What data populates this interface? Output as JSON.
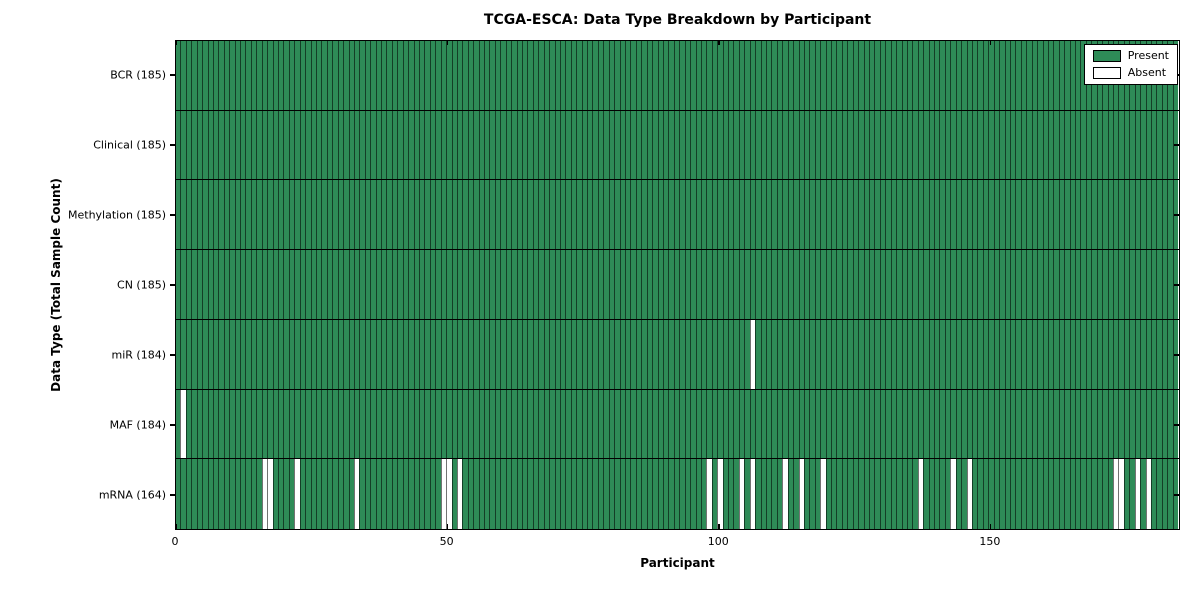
{
  "chart_data": {
    "type": "heatmap",
    "title": "TCGA-ESCA: Data Type Breakdown by Participant",
    "xlabel": "Participant",
    "ylabel": "Data Type (Total Sample Count)",
    "xlim": [
      0,
      185
    ],
    "x_ticks": [
      0,
      50,
      100,
      150
    ],
    "n_participants": 185,
    "grid": false,
    "legend": {
      "position": "upper-right",
      "items": [
        {
          "label": "Present",
          "color": "#2e8b57"
        },
        {
          "label": "Absent",
          "color": "#ffffff"
        }
      ]
    },
    "colors": {
      "present": "#2e8b57",
      "absent": "#ffffff",
      "edge": "#000000"
    },
    "rows": [
      {
        "label": "BCR (185)",
        "data_type": "BCR",
        "total_samples": 185,
        "absent_participants": []
      },
      {
        "label": "Clinical (185)",
        "data_type": "Clinical",
        "total_samples": 185,
        "absent_participants": []
      },
      {
        "label": "Methylation (185)",
        "data_type": "Methylation",
        "total_samples": 185,
        "absent_participants": []
      },
      {
        "label": "CN (185)",
        "data_type": "CN",
        "total_samples": 185,
        "absent_participants": []
      },
      {
        "label": "miR (184)",
        "data_type": "miR",
        "total_samples": 184,
        "absent_participants": [
          106
        ]
      },
      {
        "label": "MAF (184)",
        "data_type": "MAF",
        "total_samples": 184,
        "absent_participants": [
          1
        ]
      },
      {
        "label": "mRNA (164)",
        "data_type": "mRNA",
        "total_samples": 164,
        "absent_participants": [
          16,
          17,
          22,
          33,
          49,
          50,
          52,
          98,
          100,
          104,
          106,
          112,
          115,
          119,
          137,
          143,
          146,
          173,
          174,
          177,
          179
        ]
      }
    ]
  }
}
